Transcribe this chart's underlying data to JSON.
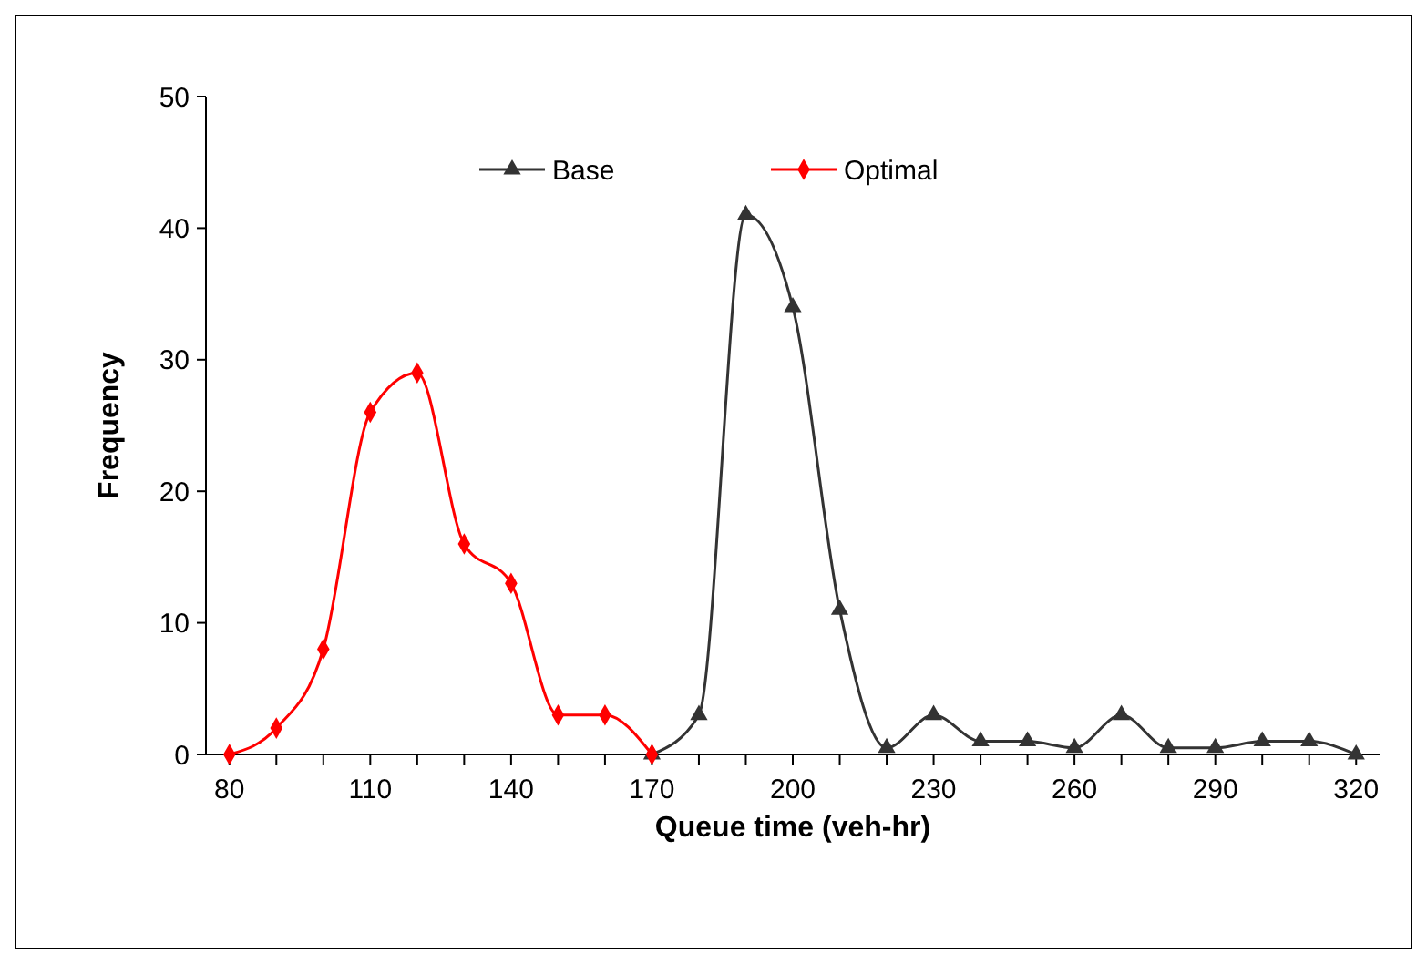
{
  "chart_data": {
    "type": "line",
    "xlabel": "Queue time (veh-hr)",
    "ylabel": "Frequency",
    "xlim": [
      75,
      325
    ],
    "xticks": [
      80,
      {
        "value": 90,
        "label": null
      },
      {
        "value": 100,
        "label": null
      },
      110,
      {
        "value": 120,
        "label": null
      },
      {
        "value": 130,
        "label": null
      },
      140,
      {
        "value": 150,
        "label": null
      },
      {
        "value": 160,
        "label": null
      },
      170,
      {
        "value": 180,
        "label": null
      },
      {
        "value": 190,
        "label": null
      },
      200,
      {
        "value": 210,
        "label": null
      },
      {
        "value": 220,
        "label": null
      },
      230,
      {
        "value": 240,
        "label": null
      },
      {
        "value": 250,
        "label": null
      },
      260,
      {
        "value": 270,
        "label": null
      },
      {
        "value": 280,
        "label": null
      },
      290,
      {
        "value": 300,
        "label": null
      },
      {
        "value": 310,
        "label": null
      },
      320
    ],
    "ylim": [
      0,
      50
    ],
    "yticks": [
      0,
      10,
      20,
      30,
      40,
      50
    ],
    "grid": false,
    "legend": "top",
    "series": [
      {
        "name": "Base",
        "color": "#333333",
        "marker": "triangle",
        "x": [
          170,
          180,
          190,
          200,
          210,
          220,
          230,
          240,
          250,
          260,
          270,
          280,
          290,
          300,
          310,
          320
        ],
        "values": [
          0,
          3,
          41,
          34,
          11,
          0.5,
          3,
          1,
          1,
          0.5,
          3,
          0.5,
          0.5,
          1,
          1,
          0
        ]
      },
      {
        "name": "Optimal",
        "color": "#ff0000",
        "marker": "diamond",
        "x": [
          80,
          90,
          100,
          110,
          120,
          130,
          140,
          150,
          160,
          170
        ],
        "values": [
          0,
          2,
          8,
          26,
          29,
          16,
          13,
          3,
          3,
          0
        ]
      }
    ]
  }
}
